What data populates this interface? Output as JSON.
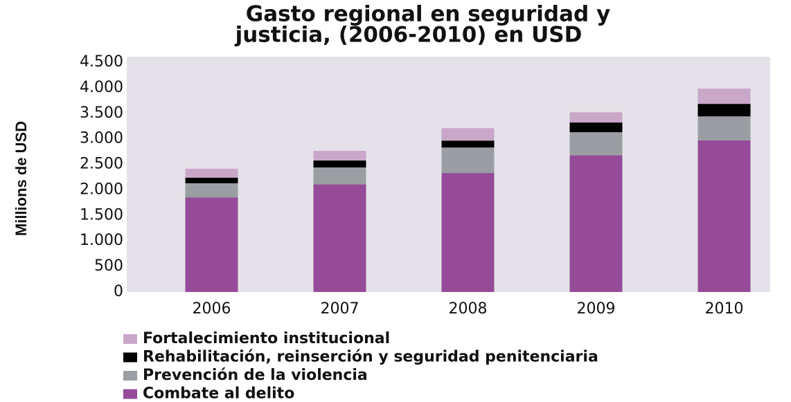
{
  "chart_data": {
    "type": "stacked_bar",
    "title": [
      "Gasto regional en seguridad y",
      "justicia, (2006-2010) en USD"
    ],
    "y_label": "Millions de USD",
    "categories": [
      "2006",
      "2007",
      "2008",
      "2009",
      "2010"
    ],
    "series": [
      {
        "name": "Combate al delito",
        "color": "#954b97",
        "values": [
          1850,
          2110,
          2330,
          2680,
          2970
        ]
      },
      {
        "name": "Prevención de la violencia",
        "color": "#9a9ea2",
        "values": [
          280,
          330,
          500,
          450,
          470
        ]
      },
      {
        "name": "Rehabilitación, reinserción y seguridad penitenciaria",
        "color": "#000000",
        "values": [
          110,
          135,
          135,
          190,
          245
        ]
      },
      {
        "name": "Fortalecimiento institucional",
        "color": "#c9a7c9",
        "values": [
          175,
          190,
          245,
          200,
          300
        ]
      }
    ],
    "ylim": [
      0,
      4500
    ],
    "yticks": [
      0,
      500,
      {
        "value": 1000,
        "label": "1.000"
      },
      {
        "value": 1500,
        "label": "1.500"
      },
      {
        "value": 2000,
        "label": "2.000"
      },
      {
        "value": 2500,
        "label": "2.500"
      },
      {
        "value": 3000,
        "label": "3.000"
      },
      {
        "value": 3500,
        "label": "3.500"
      },
      {
        "value": 4000,
        "label": "4.000"
      },
      {
        "value": 4500,
        "label": "4.500"
      }
    ],
    "plot_background": "#e5e1e8"
  }
}
